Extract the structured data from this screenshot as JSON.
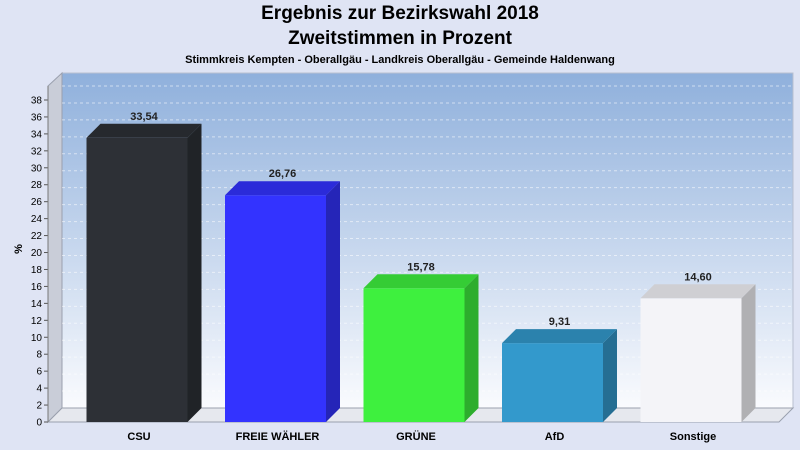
{
  "chart_data": {
    "type": "bar",
    "title": "Ergebnis zur Bezirkswahl 2018",
    "subtitle": "Zweitstimmen in Prozent",
    "caption": "Stimmkreis Kempten - Oberallgäu - Landkreis Oberallgäu - Gemeinde Haldenwang",
    "ylabel": "%",
    "xlabel": "",
    "ylim": [
      0,
      38
    ],
    "ytick_step": 2,
    "grid": true,
    "categories": [
      "CSU",
      "FREIE WÄHLER",
      "GRÜNE",
      "AfD",
      "Sonstige"
    ],
    "values": [
      33.54,
      26.76,
      15.78,
      9.31,
      14.6
    ],
    "value_labels": [
      "33,54",
      "26,76",
      "15,78",
      "9,31",
      "14,60"
    ],
    "colors": [
      "#2d3036",
      "#3333ff",
      "#3ef03e",
      "#3399cc",
      "#f4f4f8"
    ]
  }
}
